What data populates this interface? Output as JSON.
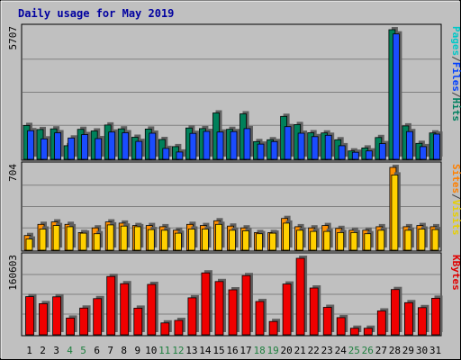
{
  "chart_data": {
    "type": "bar",
    "title": "Daily usage for May 2019",
    "days": [
      "1",
      "2",
      "3",
      "4",
      "5",
      "6",
      "7",
      "8",
      "9",
      "10",
      "11",
      "12",
      "13",
      "14",
      "15",
      "16",
      "17",
      "18",
      "19",
      "20",
      "21",
      "22",
      "23",
      "24",
      "25",
      "26",
      "27",
      "28",
      "29",
      "30",
      "31"
    ],
    "weekend_days": [
      "4",
      "5",
      "11",
      "12",
      "18",
      "19",
      "25",
      "26"
    ],
    "panels": [
      {
        "id": "hits",
        "max_label": "5707",
        "ymax": 5707,
        "legend": [
          "Pages",
          "/",
          "Files",
          "/",
          "Hits"
        ],
        "legend_colors": [
          "#00c8c8",
          "#404040",
          "#0040ff",
          "#404040",
          "#008060"
        ],
        "series": [
          {
            "name": "Hits",
            "color": "#00805a",
            "values": [
              1490,
              1310,
              1340,
              600,
              1320,
              1250,
              1510,
              1340,
              970,
              1330,
              870,
              560,
              1380,
              1350,
              2040,
              1320,
              2000,
              780,
              860,
              1890,
              1530,
              1170,
              1160,
              860,
              370,
              500,
              960,
              5707,
              1470,
              700,
              1160
            ]
          },
          {
            "name": "Files",
            "color": "#1a4cff",
            "values": [
              1260,
              900,
              1170,
              940,
              1090,
              910,
              1200,
              1170,
              790,
              1150,
              480,
              320,
              1140,
              1230,
              1200,
              1220,
              1350,
              670,
              780,
              1440,
              1150,
              1000,
              1060,
              600,
              310,
              370,
              690,
              5520,
              1220,
              560,
              1110
            ]
          },
          {
            "name": "Pages",
            "color": "#00d0f8",
            "values": [
              1020,
              540,
              310,
              450,
              1000,
              520,
              500,
              560,
              480,
              470,
              390,
              190,
              490,
              700,
              690,
              680,
              620,
              550,
              580,
              850,
              500,
              150,
              170,
              190,
              250,
              250,
              120,
              5050,
              320,
              390,
              310
            ]
          }
        ]
      },
      {
        "id": "visits",
        "max_label": "704",
        "ymax": 704,
        "legend": [
          "Sites",
          "/",
          "Visits"
        ],
        "legend_colors": [
          "#ff8000",
          "#404040",
          "#e8d000"
        ],
        "series": [
          {
            "name": "Visits",
            "color": "#ff9000",
            "values": [
              125,
              220,
              240,
              220,
              150,
              190,
              240,
              230,
              210,
              210,
              200,
              170,
              220,
              210,
              250,
              205,
              190,
              150,
              150,
              270,
              200,
              190,
              210,
              185,
              170,
              170,
              200,
              704,
              200,
              210,
              200
            ]
          },
          {
            "name": "Sites",
            "color": "#ffd000",
            "values": [
              95,
              180,
              210,
              200,
              145,
              140,
              215,
              205,
              200,
              175,
              170,
              145,
              180,
              180,
              220,
              170,
              165,
              140,
              145,
              230,
              170,
              160,
              160,
              150,
              150,
              140,
              170,
              640,
              170,
              180,
              175
            ]
          }
        ]
      },
      {
        "id": "kbytes",
        "max_label": "160603",
        "ymax": 160603,
        "legend": [
          "KBytes"
        ],
        "legend_colors": [
          "#e00000"
        ],
        "series": [
          {
            "name": "KBytes",
            "color": "#f00000",
            "values": [
              80200,
              65300,
              79800,
              35200,
              56200,
              75900,
              122500,
              107400,
              56000,
              105800,
              25000,
              30200,
              77700,
              130000,
              111800,
              94500,
              124400,
              70000,
              27900,
              106500,
              160603,
              98300,
              57600,
              36000,
              13800,
              13800,
              50000,
              95100,
              67400,
              57100,
              76700
            ]
          }
        ]
      }
    ]
  }
}
